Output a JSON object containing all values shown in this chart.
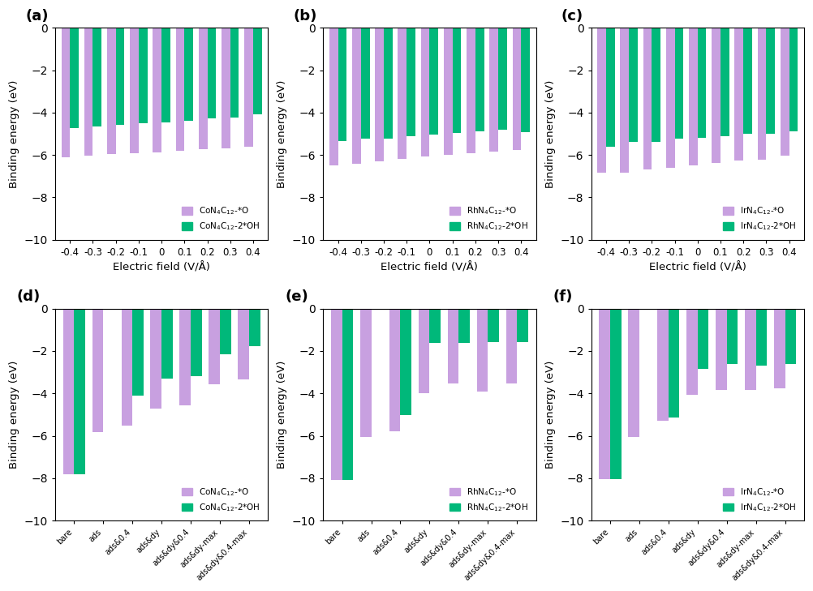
{
  "panels_top": [
    {
      "label": "(a)",
      "legend_O": "CoN$_4$C$_{12}$-*O",
      "legend_OH": "CoN$_4$C$_{12}$-2*OH",
      "x_labels": [
        "-0.4",
        "-0.3",
        "-0.2",
        "-0.1",
        "0",
        "0.1",
        "0.2",
        "0.3",
        "0.4"
      ],
      "values_O": [
        -6.1,
        -6.02,
        -5.97,
        -5.92,
        -5.87,
        -5.8,
        -5.74,
        -5.68,
        -5.62
      ],
      "values_OH": [
        -4.72,
        -4.67,
        -4.57,
        -4.52,
        -4.47,
        -4.38,
        -4.28,
        -4.22,
        -4.1
      ]
    },
    {
      "label": "(b)",
      "legend_O": "RhN$_4$C$_{12}$-*O",
      "legend_OH": "RhN$_4$C$_{12}$-2*OH",
      "x_labels": [
        "-0.4",
        "-0.3",
        "-0.2",
        "-0.1",
        "0",
        "0.1",
        "0.2",
        "0.3",
        "0.4"
      ],
      "values_O": [
        -6.48,
        -6.42,
        -6.32,
        -6.2,
        -6.08,
        -6.0,
        -5.92,
        -5.85,
        -5.78
      ],
      "values_OH": [
        -5.35,
        -5.25,
        -5.22,
        -5.1,
        -5.05,
        -4.95,
        -4.88,
        -4.8,
        -4.92
      ]
    },
    {
      "label": "(c)",
      "legend_O": "IrN$_4$C$_{12}$-*O",
      "legend_OH": "IrN$_4$C$_{12}$-2*OH",
      "x_labels": [
        "-0.4",
        "-0.3",
        "-0.2",
        "-0.1",
        "0",
        "0.1",
        "0.2",
        "0.3",
        "0.4"
      ],
      "values_O": [
        -6.85,
        -6.82,
        -6.68,
        -6.6,
        -6.48,
        -6.38,
        -6.28,
        -6.22,
        -6.05
      ],
      "values_OH": [
        -5.62,
        -5.38,
        -5.37,
        -5.22,
        -5.2,
        -5.1,
        -5.02,
        -5.02,
        -4.88
      ]
    }
  ],
  "panels_bottom": [
    {
      "label": "(d)",
      "legend_O": "CoN$_4$C$_{12}$-*O",
      "legend_OH": "CoN$_4$C$_{12}$-2*OH",
      "x_labels": [
        "bare",
        "ads",
        "ads&0.4",
        "ads&dy",
        "ads&dy&0.4",
        "ads&dy-max",
        "ads&dy&0.4-max"
      ],
      "values_O": [
        -7.82,
        -5.82,
        -5.52,
        -4.72,
        -4.55,
        -3.58,
        -3.35
      ],
      "values_OH": [
        -7.82,
        null,
        -4.12,
        -3.3,
        -3.2,
        -2.15,
        -1.78
      ]
    },
    {
      "label": "(e)",
      "legend_O": "RhN$_4$C$_{12}$-*O",
      "legend_OH": "RhN$_4$C$_{12}$-2*OH",
      "x_labels": [
        "bare",
        "ads",
        "ads&0.4",
        "ads&dy",
        "ads&dy&0.4",
        "ads&dy-max",
        "ads&dy&0.4-max"
      ],
      "values_O": [
        -8.1,
        -6.05,
        -5.78,
        -3.98,
        -3.52,
        -3.9,
        -3.52
      ],
      "values_OH": [
        -8.1,
        null,
        -5.02,
        -1.62,
        -1.62,
        -1.58,
        -1.58
      ]
    },
    {
      "label": "(f)",
      "legend_O": "IrN$_4$C$_{12}$-*O",
      "legend_OH": "IrN$_4$C$_{12}$-2*OH",
      "x_labels": [
        "bare",
        "ads",
        "ads&0.4",
        "ads&dy",
        "ads&dy&0.4",
        "ads&dy-max",
        "ads&dy&0.4-max"
      ],
      "values_O": [
        -8.05,
        -6.05,
        -5.3,
        -4.05,
        -3.85,
        -3.85,
        -3.75
      ],
      "values_OH": [
        -8.05,
        null,
        -5.15,
        -2.85,
        -2.6,
        -2.68,
        -2.6
      ]
    }
  ],
  "color_O": "#c8a0e0",
  "color_OH": "#00b87a",
  "xlabel_top": "Electric field (V/Å)",
  "ylabel": "Binding energy (eV)",
  "ylim": [
    0,
    -10
  ],
  "yticks": [
    0,
    -2,
    -4,
    -6,
    -8,
    -10
  ]
}
